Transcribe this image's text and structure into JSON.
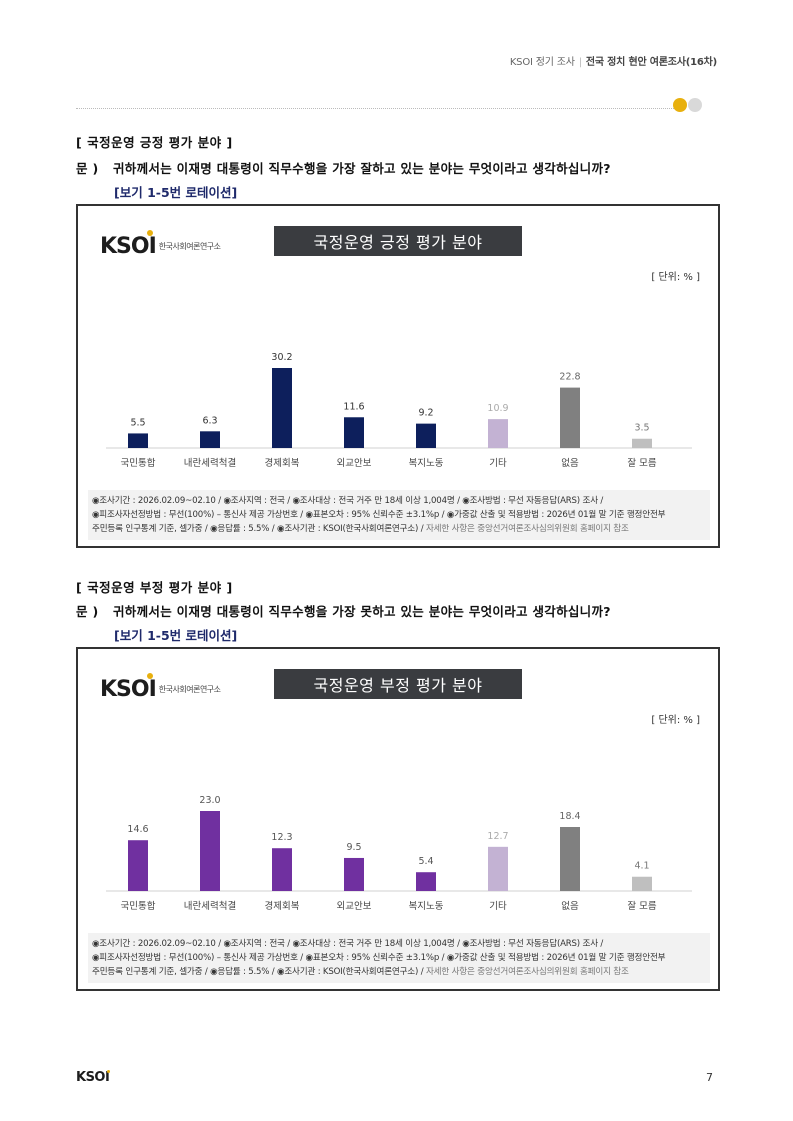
{
  "header": {
    "org_survey": "KSOI 정기 조사",
    "survey_name": "전국 정치 현안 여론조사(16차)"
  },
  "sections": [
    {
      "section_title": "[ 국정운영 긍정 평가 분야 ]",
      "question_label": "문 )",
      "question_text": "귀하께서는 이재명 대통령이 직무수행을 가장 잘하고 있는 분야는 무엇이라고 생각하십니까?",
      "rotation_note": "[보기 1-5번 로테이션]",
      "logo_text": "KSOI",
      "logo_sub": "한국사회여론연구소",
      "chart_title": "국정운영 긍정 평가 분야",
      "unit": "[ 단위: % ]",
      "footnote_line1": "◉조사기간 : 2026.02.09~02.10 / ◉조사지역 : 전국 / ◉조사대상 : 전국 거주 만 18세 이상 1,004명 / ◉조사방법 : 무선 자동응답(ARS) 조사 /",
      "footnote_line2": "◉피조사자선정방법 : 무선(100%) – 통신사 제공 가상번호 / ◉표본오차 : 95% 신뢰수준 ±3.1%p / ◉가중값 산출 및 적용방법 : 2026년 01월 말 기준 행정안전부",
      "footnote_line3a": "주민등록 인구통계 기준, 셀가중 / ◉응답률 : 5.5% / ◉조사기관 : KSOI(한국사회여론연구소) /",
      "footnote_line3b": " 자세한 사항은 중앙선거여론조사심의위원회 홈페이지 참조"
    },
    {
      "section_title": "[ 국정운영 부정 평가 분야 ]",
      "question_label": "문 )",
      "question_text": "귀하께서는 이재명 대통령이 직무수행을 가장 못하고 있는 분야는 무엇이라고 생각하십니까?",
      "rotation_note": "[보기 1-5번 로테이션]",
      "logo_text": "KSOI",
      "logo_sub": "한국사회여론연구소",
      "chart_title": "국정운영 부정 평가 분야",
      "unit": "[ 단위: % ]",
      "footnote_line1": "◉조사기간 : 2026.02.09~02.10 / ◉조사지역 : 전국 / ◉조사대상 : 전국 거주 만 18세 이상 1,004명 / ◉조사방법 : 무선 자동응답(ARS) 조사 /",
      "footnote_line2": "◉피조사자선정방법 : 무선(100%) – 통신사 제공 가상번호 / ◉표본오차 : 95% 신뢰수준 ±3.1%p / ◉가중값 산출 및 적용방법 : 2026년 01월 말 기준 행정안전부",
      "footnote_line3a": "주민등록 인구통계 기준, 셀가중 / ◉응답률 : 5.5% / ◉조사기관 : KSOI(한국사회여론연구소) /",
      "footnote_line3b": " 자세한 사항은 중앙선거여론조사심의위원회 홈페이지 참조"
    }
  ],
  "chart_data": [
    {
      "type": "bar",
      "title": "국정운영 긍정 평가 분야",
      "categories": [
        "국민통합",
        "내란세력척결",
        "경제회복",
        "외교안보",
        "복지노동",
        "기타",
        "없음",
        "잘 모름"
      ],
      "values": [
        5.5,
        6.3,
        30.2,
        11.6,
        9.2,
        10.9,
        22.8,
        3.5
      ],
      "labels": [
        "5.5",
        "6.3",
        "30.2",
        "11.6",
        "9.2",
        "10.9",
        "22.8",
        "3.5"
      ],
      "colors": [
        "#0d1f5c",
        "#0d1f5c",
        "#0d1f5c",
        "#0d1f5c",
        "#0d1f5c",
        "#c3b2d3",
        "#808080",
        "#bfbfbf"
      ],
      "label_colors": [
        "#333333",
        "#333333",
        "#333333",
        "#333333",
        "#333333",
        "#aaaaaa",
        "#666666",
        "#777777"
      ],
      "ylim": [
        0,
        30.2
      ],
      "grid": false,
      "legend": "none"
    },
    {
      "type": "bar",
      "title": "국정운영 부정 평가 분야",
      "categories": [
        "국민통합",
        "내란세력척결",
        "경제회복",
        "외교안보",
        "복지노동",
        "기타",
        "없음",
        "잘 모름"
      ],
      "values": [
        14.6,
        23.0,
        12.3,
        9.5,
        5.4,
        12.7,
        18.4,
        4.1
      ],
      "labels": [
        "14.6",
        "23.0",
        "12.3",
        "9.5",
        "5.4",
        "12.7",
        "18.4",
        "4.1"
      ],
      "colors": [
        "#7030a0",
        "#7030a0",
        "#7030a0",
        "#7030a0",
        "#7030a0",
        "#c3b2d3",
        "#808080",
        "#bfbfbf"
      ],
      "label_colors": [
        "#555555",
        "#555555",
        "#555555",
        "#555555",
        "#555555",
        "#aaaaaa",
        "#666666",
        "#777777"
      ],
      "ylim": [
        0,
        23.0
      ],
      "grid": false,
      "legend": "none"
    }
  ],
  "footer": {
    "logo": "KSOI",
    "page_number": "7"
  }
}
